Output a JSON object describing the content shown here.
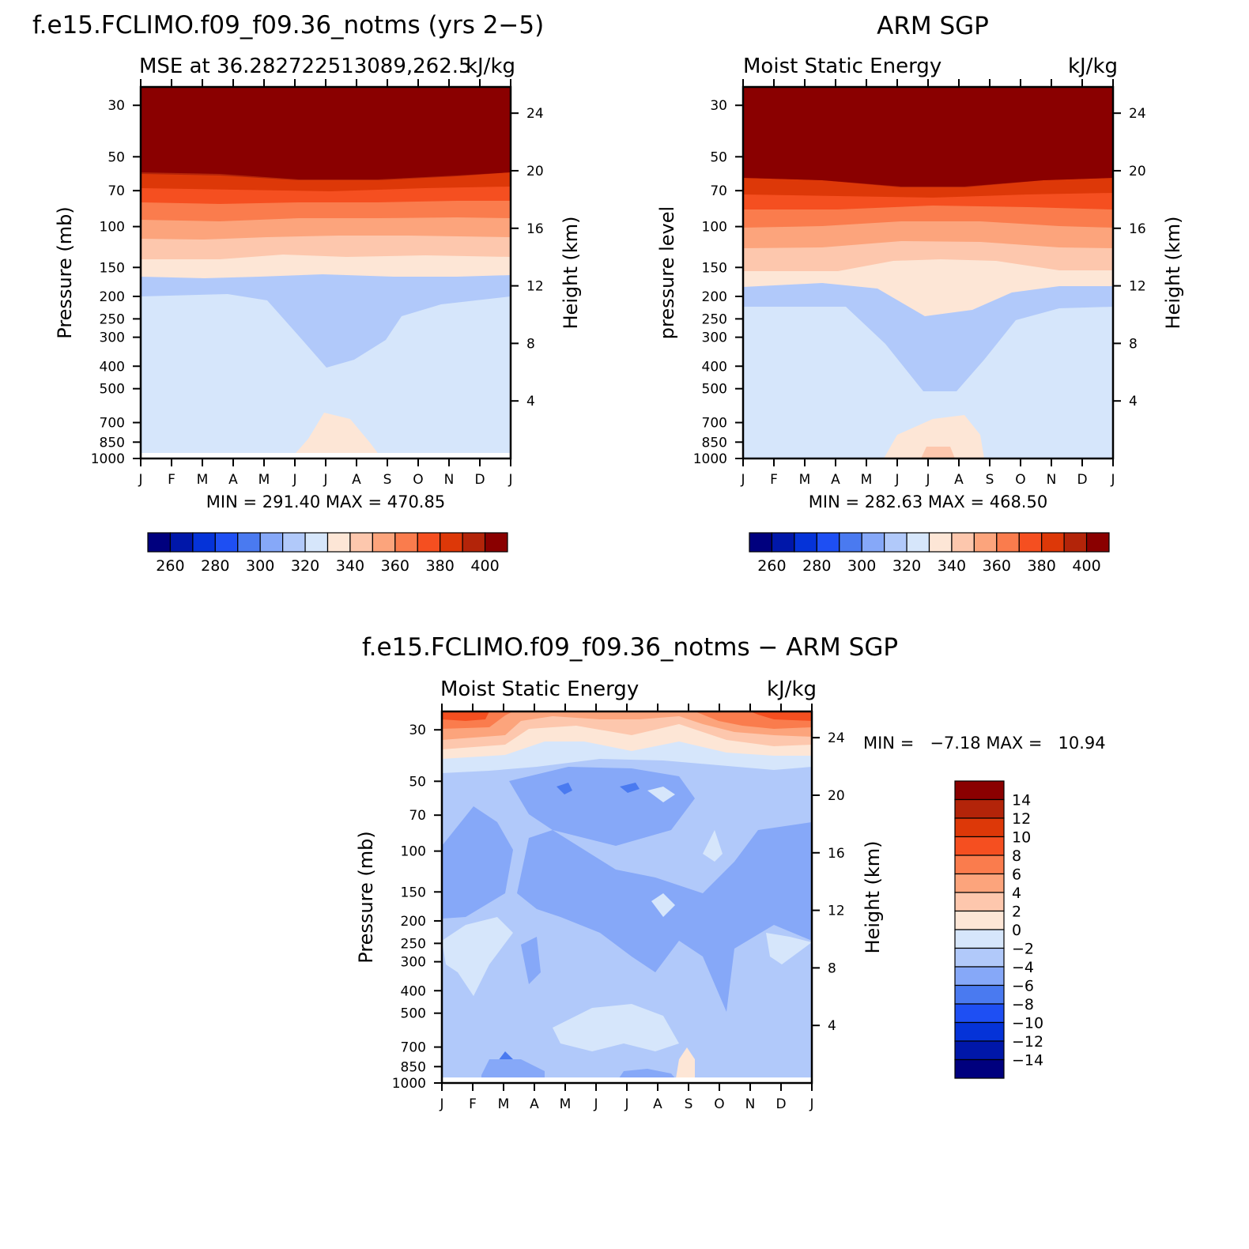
{
  "chart_data": [
    {
      "type": "heatmap",
      "id": "model",
      "main_title": "f.e15.FCLIMO.f09_f09.36_notms (yrs 2−5)",
      "left_subtitle": "MSE at 36.282722513089,262.5",
      "right_subtitle": "kJ/kg",
      "ylabel": "Pressure (mb)",
      "ylabel_right": "Height (km)",
      "months": [
        "J",
        "F",
        "M",
        "A",
        "M",
        "J",
        "J",
        "A",
        "S",
        "O",
        "N",
        "D",
        "J"
      ],
      "pressure_ticks": [
        "30",
        "50",
        "70",
        "100",
        "150",
        "200",
        "250",
        "300",
        "400",
        "500",
        "700",
        "850",
        "1000"
      ],
      "height_ticks": [
        "24",
        "20",
        "16",
        "12",
        "8",
        "4"
      ],
      "ylim_mb": [
        1000,
        25
      ],
      "min_max": "MIN = 291.40 MAX = 470.85",
      "min": 291.4,
      "max": 470.85,
      "colorbar_labels": [
        "260",
        "280",
        "300",
        "320",
        "340",
        "360",
        "380",
        "400"
      ],
      "contour_levels": [
        250,
        260,
        270,
        280,
        290,
        300,
        310,
        320,
        330,
        340,
        350,
        360,
        370,
        380,
        390,
        400
      ],
      "colors": [
        "#00007e",
        "#0017a9",
        "#0533d8",
        "#1e4ff3",
        "#4a7af0",
        "#86a8f8",
        "#b1c9fa",
        "#d6e6fb",
        "#fde6d6",
        "#fdc7ad",
        "#fca47c",
        "#fa7c4d",
        "#f54f20",
        "#dd3808",
        "#b32409",
        "#8a0000"
      ]
    },
    {
      "type": "heatmap",
      "id": "obs",
      "main_title": "ARM SGP",
      "left_subtitle": "Moist Static Energy",
      "right_subtitle": "kJ/kg",
      "ylabel": "pressure level",
      "ylabel_right": "Height (km)",
      "months": [
        "J",
        "F",
        "M",
        "A",
        "M",
        "J",
        "J",
        "A",
        "S",
        "O",
        "N",
        "D",
        "J"
      ],
      "pressure_ticks": [
        "30",
        "50",
        "70",
        "100",
        "150",
        "200",
        "250",
        "300",
        "400",
        "500",
        "700",
        "850",
        "1000"
      ],
      "height_ticks": [
        "24",
        "20",
        "16",
        "12",
        "8",
        "4"
      ],
      "ylim_mb": [
        1000,
        25
      ],
      "min_max": "MIN = 282.63 MAX = 468.50",
      "min": 282.63,
      "max": 468.5,
      "colorbar_labels": [
        "260",
        "280",
        "300",
        "320",
        "340",
        "360",
        "380",
        "400"
      ],
      "contour_levels": [
        250,
        260,
        270,
        280,
        290,
        300,
        310,
        320,
        330,
        340,
        350,
        360,
        370,
        380,
        390,
        400
      ],
      "colors": [
        "#00007e",
        "#0017a9",
        "#0533d8",
        "#1e4ff3",
        "#4a7af0",
        "#86a8f8",
        "#b1c9fa",
        "#d6e6fb",
        "#fde6d6",
        "#fdc7ad",
        "#fca47c",
        "#fa7c4d",
        "#f54f20",
        "#dd3808",
        "#b32409",
        "#8a0000"
      ]
    },
    {
      "type": "heatmap",
      "id": "diff",
      "main_title": "f.e15.FCLIMO.f09_f09.36_notms − ARM SGP",
      "left_subtitle": "Moist Static Energy",
      "right_subtitle": "kJ/kg",
      "ylabel": "Pressure (mb)",
      "ylabel_right": "Height (km)",
      "months": [
        "J",
        "F",
        "M",
        "A",
        "M",
        "J",
        "J",
        "A",
        "S",
        "O",
        "N",
        "D",
        "J"
      ],
      "pressure_ticks": [
        "30",
        "50",
        "70",
        "100",
        "150",
        "200",
        "250",
        "300",
        "400",
        "500",
        "700",
        "850",
        "1000"
      ],
      "height_ticks": [
        "24",
        "20",
        "16",
        "12",
        "8",
        "4"
      ],
      "ylim_mb": [
        1000,
        25
      ],
      "min_max": "MIN =   −7.18 MAX =   10.94",
      "min": -7.18,
      "max": 10.94,
      "colorbar_labels": [
        "14",
        "12",
        "10",
        "8",
        "6",
        "4",
        "2",
        "0",
        "−2",
        "−4",
        "−6",
        "−8",
        "−10",
        "−12",
        "−14"
      ],
      "contour_levels": [
        -14,
        -12,
        -10,
        -8,
        -6,
        -4,
        -2,
        0,
        2,
        4,
        6,
        8,
        10,
        12,
        14
      ],
      "colors": [
        "#8a0000",
        "#b32409",
        "#dd3808",
        "#f54f20",
        "#fa7c4d",
        "#fca47c",
        "#fdc7ad",
        "#fde6d6",
        "#d6e6fb",
        "#b1c9fa",
        "#86a8f8",
        "#4a7af0",
        "#1e4ff3",
        "#0533d8",
        "#0017a9",
        "#00007e"
      ]
    }
  ]
}
